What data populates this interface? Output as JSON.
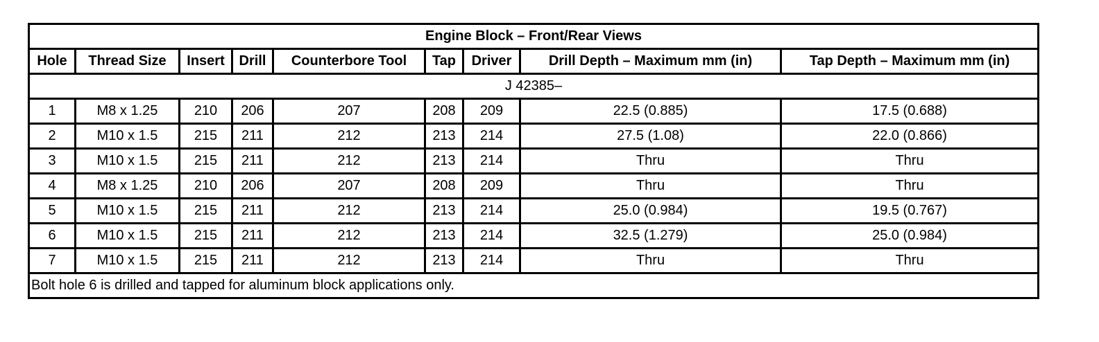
{
  "title": "Engine Block – Front/Rear Views",
  "headers": [
    "Hole",
    "Thread Size",
    "Insert",
    "Drill",
    "Counterbore Tool",
    "Tap",
    "Driver",
    "Drill Depth – Maximum mm (in)",
    "Tap Depth – Maximum mm (in)"
  ],
  "tool_prefix": "J 42385–",
  "rows": [
    [
      "1",
      "M8 x 1.25",
      "210",
      "206",
      "207",
      "208",
      "209",
      "22.5 (0.885)",
      "17.5 (0.688)"
    ],
    [
      "2",
      "M10 x 1.5",
      "215",
      "211",
      "212",
      "213",
      "214",
      "27.5 (1.08)",
      "22.0 (0.866)"
    ],
    [
      "3",
      "M10 x 1.5",
      "215",
      "211",
      "212",
      "213",
      "214",
      "Thru",
      "Thru"
    ],
    [
      "4",
      "M8 x 1.25",
      "210",
      "206",
      "207",
      "208",
      "209",
      "Thru",
      "Thru"
    ],
    [
      "5",
      "M10 x 1.5",
      "215",
      "211",
      "212",
      "213",
      "214",
      "25.0 (0.984)",
      "19.5 (0.767)"
    ],
    [
      "6",
      "M10 x 1.5",
      "215",
      "211",
      "212",
      "213",
      "214",
      "32.5 (1.279)",
      "25.0 (0.984)"
    ],
    [
      "7",
      "M10 x 1.5",
      "215",
      "211",
      "212",
      "213",
      "214",
      "Thru",
      "Thru"
    ]
  ],
  "footnote": "Bolt hole 6 is drilled and tapped for aluminum block applications only."
}
